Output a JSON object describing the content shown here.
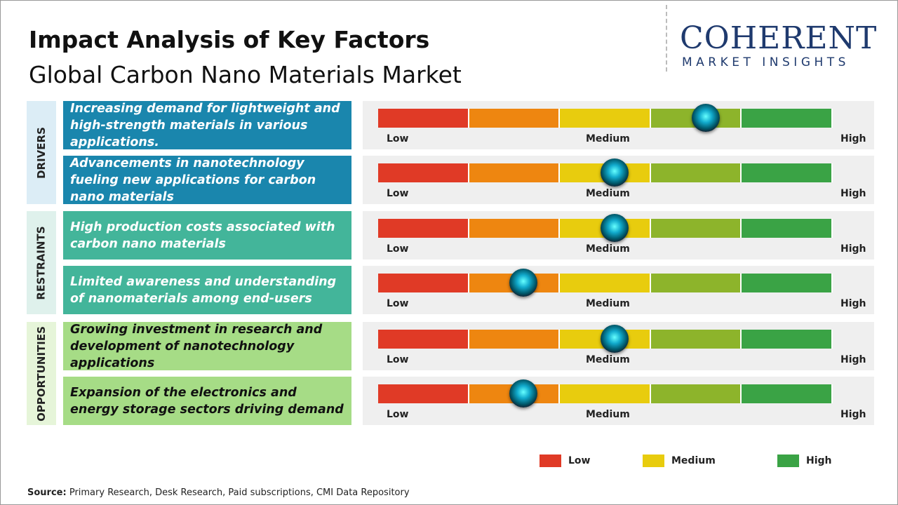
{
  "header": {
    "title": "Impact Analysis of Key Factors",
    "subtitle": "Global Carbon Nano Materials Market"
  },
  "logo": {
    "name": "COHERENT",
    "tagline": "MARKET INSIGHTS"
  },
  "segment_colors": [
    "#e03a26",
    "#ee8610",
    "#e8cc0e",
    "#8db42b",
    "#3aa345"
  ],
  "gauge_labels": [
    "Low",
    "Medium",
    "High"
  ],
  "groups": [
    {
      "label": "DRIVERS",
      "label_bg": "#dcedf6",
      "color": "#1a86ad",
      "text_color": "#ffffff",
      "factors": [
        {
          "text": "Increasing demand for lightweight and high-strength materials in various applications.",
          "impact": 3.6
        },
        {
          "text": "Advancements in nanotechnology fueling new applications for carbon nano materials",
          "impact": 2.6
        }
      ]
    },
    {
      "label": "RESTRAINTS",
      "label_bg": "#dff1ec",
      "color": "#43b59a",
      "text_color": "#ffffff",
      "factors": [
        {
          "text": "High production costs associated with carbon nano materials",
          "impact": 2.6
        },
        {
          "text": "Limited awareness and understanding of nanomaterials among end-users",
          "impact": 1.6
        }
      ]
    },
    {
      "label": "OPPORTUNITIES",
      "label_bg": "#e6f5d9",
      "color": "#a6dc86",
      "text_color": "#111111",
      "factors": [
        {
          "text": "Growing investment in research and development of nanotechnology applications",
          "impact": 2.6
        },
        {
          "text": "Expansion of the electronics and energy storage sectors driving demand",
          "impact": 1.6
        }
      ]
    }
  ],
  "legend": [
    {
      "name": "Low",
      "color": "#e03a26"
    },
    {
      "name": "Medium",
      "color": "#e8cc0e"
    },
    {
      "name": "High",
      "color": "#3aa345"
    }
  ],
  "source": {
    "label": "Source:",
    "text": "Primary Research, Desk Research, Paid subscriptions, CMI Data Repository"
  }
}
